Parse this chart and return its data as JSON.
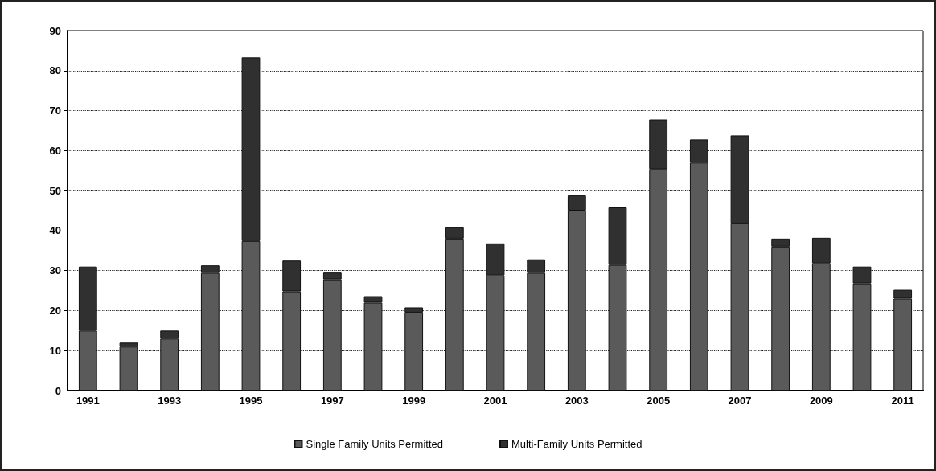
{
  "chart_data": {
    "type": "bar",
    "stacked": true,
    "categories": [
      "1991",
      null,
      "1993",
      null,
      "1995",
      null,
      "1997",
      null,
      "1999",
      null,
      "2001",
      null,
      "2003",
      null,
      "2005",
      null,
      "2007",
      null,
      "2009",
      null,
      "2011"
    ],
    "series": [
      {
        "name": "Single Family Units Permitted",
        "color": "#5a5a5a",
        "values": [
          15,
          11,
          13,
          29.4,
          37.4,
          24.8,
          27.8,
          22,
          19.5,
          38,
          28.8,
          29.4,
          45,
          31.4,
          55.4,
          57,
          41.8,
          36,
          31.8,
          26.8,
          23
        ]
      },
      {
        "name": "Multi-Family Units Permitted",
        "color": "#303030",
        "values": [
          16,
          1,
          2,
          1.9,
          45.9,
          7.7,
          1.7,
          1.6,
          1.3,
          2.8,
          8,
          3.4,
          3.8,
          14.4,
          12.4,
          5.8,
          22,
          2,
          6.4,
          4.2,
          2.2
        ]
      }
    ],
    "ylim": [
      0,
      90
    ],
    "yticks": [
      0,
      10,
      20,
      30,
      40,
      50,
      60,
      70,
      80,
      90
    ],
    "grid": "y",
    "legend": "bottom"
  }
}
